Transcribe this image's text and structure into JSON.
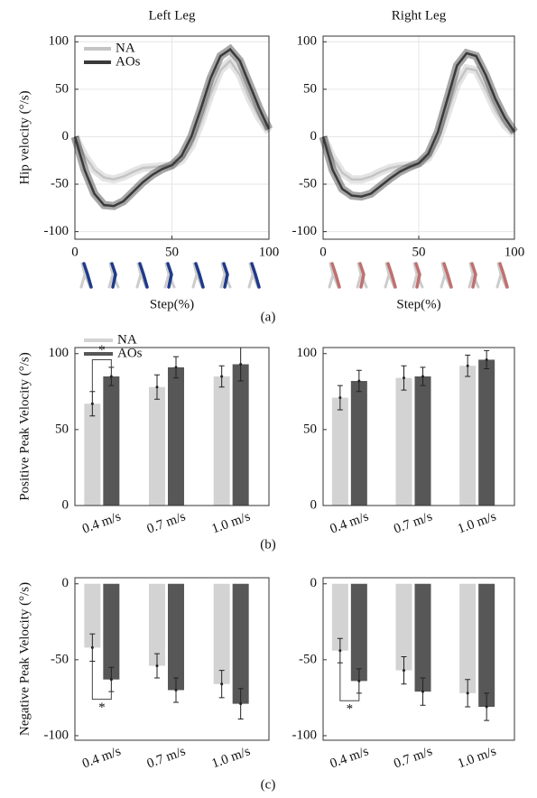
{
  "chart_data": [
    {
      "type": "line",
      "title": "Left Leg",
      "ylabel": "Hip velocity (°/s)",
      "xlabel": "Step(%)",
      "x": [
        0,
        5,
        10,
        15,
        20,
        25,
        30,
        35,
        40,
        45,
        50,
        55,
        60,
        65,
        70,
        75,
        80,
        85,
        90,
        95,
        100
      ],
      "series": [
        {
          "name": "NA",
          "color": "#c4c4c4",
          "values": [
            0,
            -20,
            -35,
            -43,
            -45,
            -42,
            -37,
            -33,
            -32,
            -31,
            -30,
            -25,
            -10,
            15,
            45,
            70,
            80,
            65,
            40,
            20,
            5
          ]
        },
        {
          "name": "AOs",
          "color": "#3a3a3a",
          "values": [
            0,
            -35,
            -60,
            -72,
            -73,
            -68,
            -58,
            -48,
            -40,
            -34,
            -30,
            -20,
            0,
            30,
            62,
            85,
            92,
            80,
            55,
            30,
            8
          ]
        }
      ],
      "xlim": [
        0,
        100
      ],
      "ylim": [
        -108,
        106
      ],
      "xticks": [
        0,
        50,
        100
      ],
      "yticks": [
        -100,
        -50,
        0,
        50,
        100
      ],
      "grid": true,
      "legend": "upper left"
    },
    {
      "type": "line",
      "title": "Right Leg",
      "xlabel": "Step(%)",
      "x": [
        0,
        5,
        10,
        15,
        20,
        25,
        30,
        35,
        40,
        45,
        50,
        55,
        60,
        65,
        70,
        75,
        80,
        85,
        90,
        95,
        100
      ],
      "series": [
        {
          "name": "NA",
          "color": "#c4c4c4",
          "values": [
            0,
            -22,
            -38,
            -45,
            -45,
            -42,
            -37,
            -33,
            -31,
            -30,
            -28,
            -22,
            -5,
            25,
            55,
            72,
            70,
            50,
            28,
            12,
            3
          ]
        },
        {
          "name": "AOs",
          "color": "#3a3a3a",
          "values": [
            0,
            -35,
            -55,
            -62,
            -63,
            -60,
            -52,
            -44,
            -37,
            -32,
            -28,
            -18,
            5,
            40,
            75,
            88,
            85,
            65,
            40,
            20,
            5
          ]
        }
      ],
      "xlim": [
        0,
        100
      ],
      "ylim": [
        -108,
        106
      ],
      "xticks": [
        0,
        50,
        100
      ],
      "yticks": [
        -100,
        -50,
        0,
        50,
        100
      ],
      "grid": true
    },
    {
      "type": "bar",
      "ylabel": "Positive Peak Velocity (°/s)",
      "categories": [
        "0.4 m/s",
        "0.7 m/s",
        "1.0 m/s"
      ],
      "series": [
        {
          "name": "NA",
          "color": "#d3d3d3",
          "values": [
            67,
            78,
            85
          ],
          "errors": [
            8,
            8,
            7
          ]
        },
        {
          "name": "AOs",
          "color": "#575757",
          "values": [
            85,
            91,
            93
          ],
          "errors": [
            6,
            7,
            11
          ]
        }
      ],
      "ylim": [
        0,
        104
      ],
      "yticks": [
        0,
        50,
        100
      ],
      "legend": "above",
      "annotations": [
        {
          "text": "*",
          "category": "0.4 m/s"
        }
      ]
    },
    {
      "type": "bar",
      "categories": [
        "0.4 m/s",
        "0.7 m/s",
        "1.0 m/s"
      ],
      "series": [
        {
          "name": "NA",
          "color": "#d3d3d3",
          "values": [
            71,
            84,
            92
          ],
          "errors": [
            8,
            8,
            7
          ]
        },
        {
          "name": "AOs",
          "color": "#575757",
          "values": [
            82,
            85,
            96
          ],
          "errors": [
            7,
            6,
            6
          ]
        }
      ],
      "ylim": [
        0,
        104
      ],
      "yticks": [
        0,
        50,
        100
      ]
    },
    {
      "type": "bar",
      "ylabel": "Negative Peak Velocity (°/s)",
      "categories": [
        "0.4 m/s",
        "0.7 m/s",
        "1.0 m/s"
      ],
      "series": [
        {
          "name": "NA",
          "color": "#d3d3d3",
          "values": [
            -42,
            -54,
            -66
          ],
          "errors": [
            9,
            8,
            9
          ]
        },
        {
          "name": "AOs",
          "color": "#575757",
          "values": [
            -63,
            -70,
            -79
          ],
          "errors": [
            8,
            8,
            10
          ]
        }
      ],
      "ylim": [
        -103,
        4
      ],
      "yticks": [
        -100,
        -50,
        0
      ],
      "annotations": [
        {
          "text": "*",
          "category": "0.4 m/s"
        }
      ]
    },
    {
      "type": "bar",
      "categories": [
        "0.4 m/s",
        "0.7 m/s",
        "1.0 m/s"
      ],
      "series": [
        {
          "name": "NA",
          "color": "#d3d3d3",
          "values": [
            -44,
            -57,
            -72
          ],
          "errors": [
            8,
            9,
            9
          ]
        },
        {
          "name": "AOs",
          "color": "#575757",
          "values": [
            -64,
            -71,
            -81
          ],
          "errors": [
            8,
            9,
            9
          ]
        }
      ],
      "ylim": [
        -103,
        4
      ],
      "yticks": [
        -100,
        -50,
        0
      ],
      "annotations": [
        {
          "text": "*",
          "category": "0.4 m/s"
        }
      ]
    }
  ],
  "panel_labels": [
    "(a)",
    "(b)",
    "(c)"
  ]
}
